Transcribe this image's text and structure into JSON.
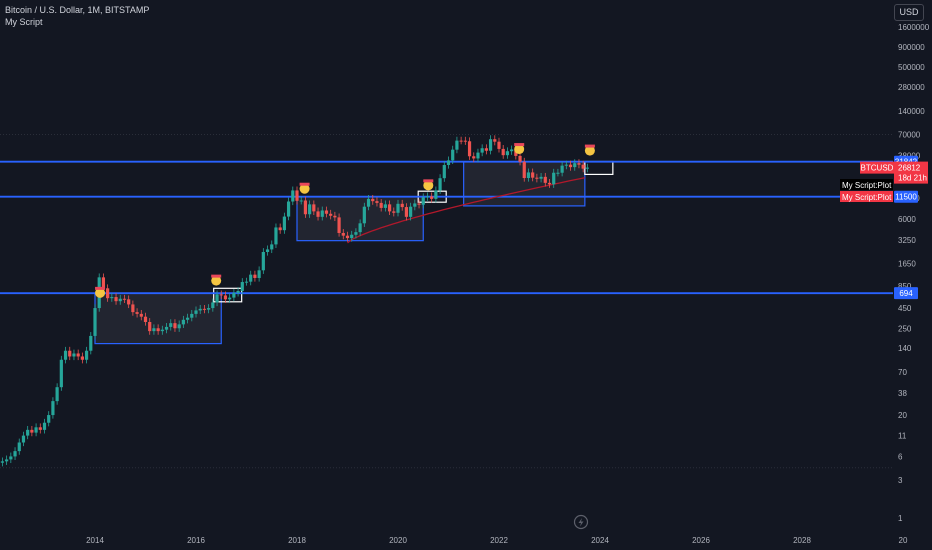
{
  "header": {
    "symbol_line": "Bitcoin / U.S. Dollar, 1M, BITSTAMP",
    "script_name": "My Script"
  },
  "currency_button": "USD",
  "chart_data": {
    "type": "candlestick",
    "title": "Bitcoin / U.S. Dollar, 1M, BITSTAMP",
    "y_scale": "log",
    "y_ticks": [
      1,
      3,
      6,
      11,
      20,
      38,
      70,
      140,
      250,
      450,
      850,
      1650,
      3250,
      6000,
      11000,
      21000,
      38000,
      70000,
      140000,
      280000,
      500000,
      900000,
      1600000
    ],
    "x_ticks": [
      "2014",
      "2016",
      "2018",
      "2020",
      "2022",
      "2024",
      "2026",
      "2028",
      "20"
    ],
    "levels": [
      {
        "value": 31842,
        "label": "31842",
        "color": "#2962ff"
      },
      {
        "value": 11500,
        "label": "11500",
        "color": "#2962ff"
      },
      {
        "value": 694,
        "label": "694",
        "color": "#2962ff"
      }
    ],
    "last_price": {
      "symbol": "BTCUSD",
      "value": "26812",
      "countdown": "18d 21h",
      "color": "#f23645"
    },
    "plot_labels": [
      {
        "text": "My Script:Plot",
        "color": "#000000"
      },
      {
        "text": "My Script:Plot",
        "color": "#f23645"
      }
    ],
    "monthly_closes": [
      4.5,
      5,
      5.2,
      5.5,
      6,
      7,
      9,
      11,
      13,
      12,
      14,
      13,
      16,
      20,
      30,
      45,
      100,
      130,
      110,
      120,
      110,
      100,
      130,
      200,
      450,
      1100,
      800,
      600,
      620,
      550,
      590,
      580,
      500,
      400,
      380,
      350,
      300,
      230,
      250,
      230,
      240,
      260,
      290,
      250,
      280,
      320,
      340,
      380,
      420,
      440,
      430,
      450,
      530,
      670,
      650,
      580,
      610,
      700,
      740,
      960,
      970,
      1190,
      1080,
      1350,
      2300,
      2480,
      2870,
      4700,
      4340,
      6450,
      10000,
      13800,
      10200,
      10300,
      6900,
      9200,
      7500,
      6400,
      7700,
      7000,
      6600,
      6300,
      4000,
      3700,
      3450,
      3800,
      4100,
      5300,
      8600,
      10800,
      10100,
      9600,
      8300,
      9200,
      7500,
      7200,
      9350,
      8500,
      6400,
      8600,
      9450,
      9100,
      11300,
      11600,
      10800,
      13800,
      19700,
      28900,
      33100,
      45200,
      58800,
      58700,
      57700,
      37300,
      35000,
      41500,
      47100,
      43800,
      61300,
      57000,
      46200,
      38500,
      43200,
      45500,
      37700,
      31800,
      19800,
      23300,
      20000,
      19400,
      20500,
      17200,
      16500,
      23100,
      23100,
      28400,
      29200,
      27200,
      30500,
      29200,
      26000,
      26812
    ],
    "ma_series": "long-term moving average (red line) rising from 2019 to 2023",
    "boxes": [
      {
        "from": "2014",
        "to": "2016.5",
        "low": 160,
        "high": 694
      },
      {
        "from": "2018",
        "to": "2020.5",
        "low": 3200,
        "high": 11500
      },
      {
        "from": "2021.3",
        "to": "2023.7",
        "low": 8800,
        "high": 31842
      }
    ]
  }
}
